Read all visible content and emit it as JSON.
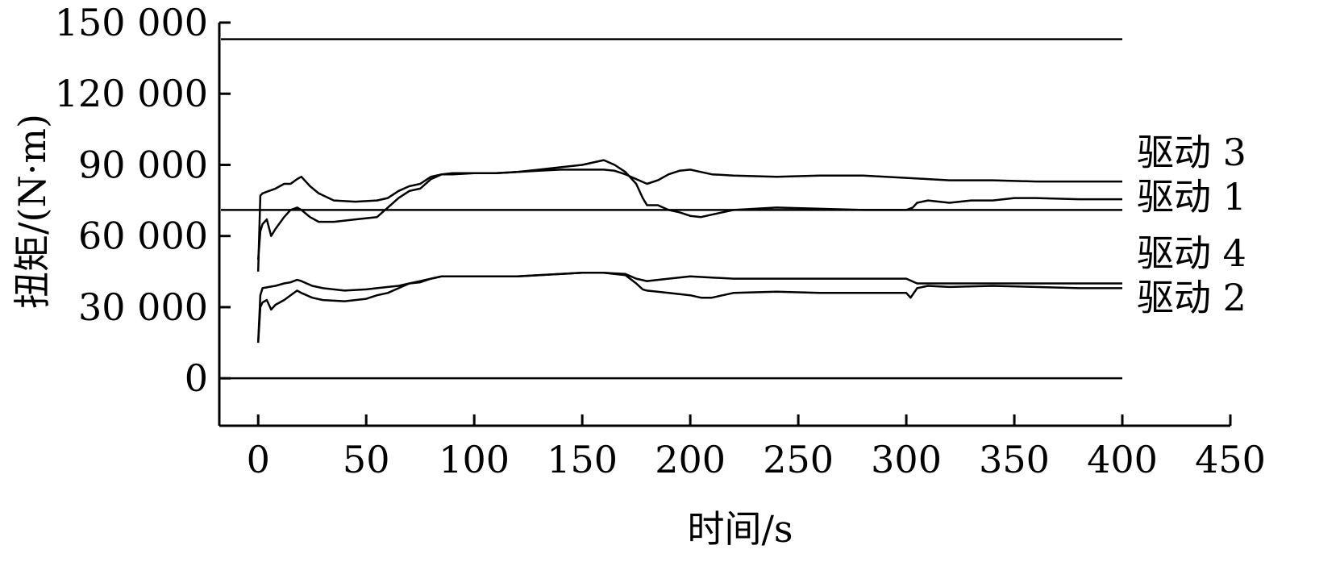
{
  "chart_data": {
    "type": "line",
    "title": "",
    "xlabel": "时间/s",
    "ylabel": "扭矩/(N·m)",
    "xlim": [
      -18,
      450
    ],
    "ylim": [
      -20000,
      150000
    ],
    "x_ticks": [
      0,
      50,
      100,
      150,
      200,
      250,
      300,
      350,
      400,
      450
    ],
    "y_ticks": [
      0,
      30000,
      60000,
      90000,
      120000,
      150000
    ],
    "x_tick_labels": [
      "0",
      "50",
      "100",
      "150",
      "200",
      "250",
      "300",
      "350",
      "400",
      "450"
    ],
    "y_tick_labels": [
      "0",
      "30 000",
      "60 000",
      "90 000",
      "120 000",
      "150 000"
    ],
    "grid": false,
    "line_color": "#000000",
    "reference_lines": [
      {
        "y": 0,
        "x_range": [
          -18,
          400
        ]
      },
      {
        "y": 71000,
        "x_range": [
          -18,
          400
        ]
      },
      {
        "y": 143000,
        "x_range": [
          -18,
          400
        ]
      }
    ],
    "series": [
      {
        "name": "驱动 3",
        "x": [
          0,
          1,
          2,
          5,
          8,
          12,
          15,
          18,
          20,
          24,
          28,
          35,
          45,
          55,
          60,
          65,
          70,
          75,
          80,
          85,
          90,
          100,
          110,
          120,
          130,
          140,
          150,
          160,
          165,
          170,
          175,
          180,
          185,
          190,
          195,
          200,
          205,
          210,
          220,
          240,
          260,
          280,
          300,
          310,
          320,
          340,
          360,
          380,
          400
        ],
        "y": [
          45000,
          77000,
          78000,
          79000,
          80000,
          82000,
          82000,
          84000,
          85000,
          81000,
          78000,
          75000,
          74500,
          75000,
          76000,
          79000,
          81000,
          82000,
          85000,
          86000,
          86000,
          86500,
          86500,
          87000,
          87500,
          88000,
          88000,
          88000,
          87500,
          86000,
          84000,
          82000,
          83500,
          86000,
          87500,
          88000,
          87000,
          86000,
          85500,
          85000,
          85500,
          85500,
          84500,
          84000,
          83500,
          83500,
          83000,
          83000,
          83000
        ]
      },
      {
        "name": "驱动 1",
        "x": [
          0,
          1,
          2,
          4,
          6,
          8,
          12,
          15,
          18,
          20,
          24,
          28,
          35,
          45,
          55,
          60,
          65,
          70,
          75,
          80,
          85,
          90,
          100,
          110,
          120,
          130,
          140,
          150,
          155,
          160,
          165,
          170,
          175,
          178,
          180,
          185,
          190,
          195,
          200,
          205,
          210,
          220,
          240,
          260,
          280,
          300,
          303,
          305,
          310,
          320,
          330,
          340,
          350,
          360,
          380,
          400
        ],
        "y": [
          50000,
          62000,
          65000,
          67000,
          60000,
          63000,
          68000,
          71000,
          72000,
          71000,
          68000,
          66000,
          66000,
          67000,
          68000,
          72000,
          76000,
          79000,
          80000,
          84000,
          86000,
          86500,
          86500,
          86500,
          87000,
          88000,
          89000,
          90000,
          91000,
          92000,
          90000,
          87000,
          82000,
          76000,
          73000,
          73000,
          71000,
          70000,
          68500,
          68000,
          69000,
          71000,
          72000,
          71500,
          71000,
          71000,
          72000,
          74000,
          75000,
          74000,
          75000,
          75000,
          76000,
          76000,
          75500,
          75500
        ]
      },
      {
        "name": "驱动 4",
        "x": [
          0,
          1,
          2,
          5,
          8,
          12,
          15,
          18,
          20,
          25,
          30,
          40,
          50,
          55,
          60,
          65,
          70,
          75,
          80,
          85,
          90,
          100,
          120,
          140,
          150,
          160,
          170,
          175,
          180,
          190,
          200,
          210,
          220,
          240,
          260,
          280,
          300,
          305,
          310,
          320,
          340,
          360,
          380,
          400
        ],
        "y": [
          15000,
          35000,
          38000,
          38500,
          39000,
          40000,
          40500,
          41500,
          41000,
          39000,
          38000,
          37000,
          37500,
          38000,
          38500,
          39000,
          40000,
          41000,
          42000,
          43000,
          43000,
          43000,
          43000,
          44000,
          44500,
          44500,
          44000,
          42000,
          41000,
          42000,
          43000,
          42500,
          42000,
          42000,
          42000,
          42000,
          42000,
          40000,
          40000,
          40000,
          40000,
          40000,
          40000,
          40000
        ]
      },
      {
        "name": "驱动 2",
        "x": [
          0,
          1,
          2,
          4,
          6,
          8,
          12,
          15,
          18,
          20,
          25,
          30,
          40,
          50,
          55,
          60,
          65,
          70,
          75,
          80,
          85,
          90,
          100,
          120,
          140,
          150,
          160,
          170,
          175,
          178,
          180,
          190,
          200,
          205,
          210,
          215,
          220,
          240,
          260,
          280,
          300,
          302,
          305,
          310,
          320,
          340,
          360,
          380,
          400
        ],
        "y": [
          15000,
          30000,
          32000,
          33000,
          29000,
          31000,
          33000,
          35000,
          37000,
          36000,
          34000,
          33000,
          32500,
          33500,
          35000,
          36000,
          38000,
          40000,
          40500,
          42000,
          43000,
          43000,
          43000,
          43000,
          44000,
          44500,
          44500,
          43500,
          40000,
          37500,
          37000,
          36000,
          35000,
          34000,
          34000,
          35000,
          36000,
          36500,
          36000,
          36000,
          36000,
          34000,
          38000,
          39000,
          38500,
          39000,
          38500,
          38000,
          38000
        ]
      }
    ]
  }
}
